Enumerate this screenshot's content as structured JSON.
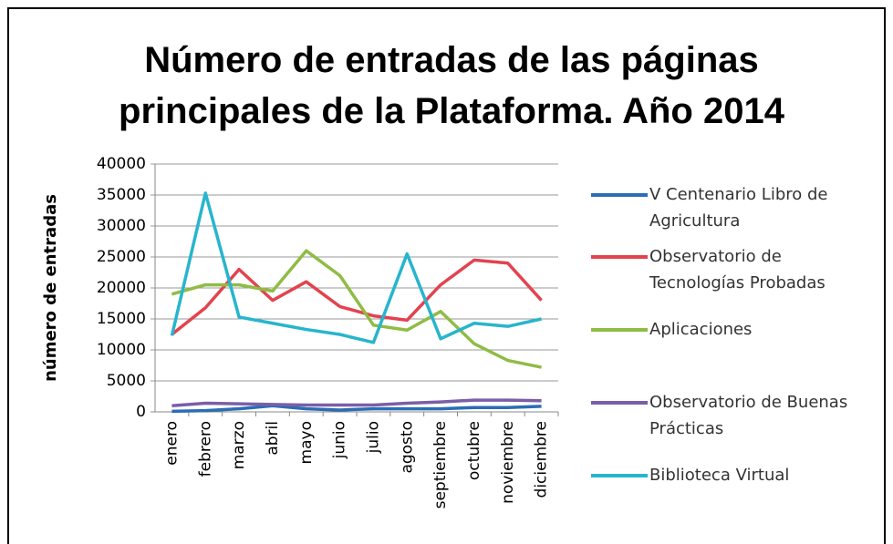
{
  "chart_data": {
    "type": "line",
    "title": "Número de entradas de las páginas principales de la Plataforma. Año 2014",
    "y_label": "número de entradas",
    "categories": [
      "enero",
      "febrero",
      "marzo",
      "abril",
      "mayo",
      "junio",
      "julio",
      "agosto",
      "septiembre",
      "octubre",
      "noviembre",
      "diciembre"
    ],
    "series": [
      {
        "name": "V Centenario Libro de Agricultura",
        "color": "#2a6db5",
        "values": [
          100,
          200,
          500,
          1000,
          500,
          300,
          500,
          500,
          500,
          700,
          700,
          900
        ]
      },
      {
        "name": "Observatorio de Tecnologías Probadas",
        "color": "#e2434f",
        "values": [
          12500,
          16800,
          23000,
          18000,
          21000,
          17000,
          15500,
          14800,
          20500,
          24500,
          24000,
          18000
        ]
      },
      {
        "name": "Aplicaciones",
        "color": "#8fbc45",
        "values": [
          19000,
          20500,
          20500,
          19500,
          26000,
          22000,
          14000,
          13200,
          16200,
          11000,
          8300,
          7200
        ]
      },
      {
        "name": "Observatorio de Buenas Prácticas",
        "color": "#7a5ea8",
        "values": [
          1000,
          1400,
          1300,
          1200,
          1100,
          1100,
          1100,
          1400,
          1600,
          1900,
          1900,
          1800
        ]
      },
      {
        "name": "Biblioteca Virtual",
        "color": "#27b5cd",
        "values": [
          12300,
          35300,
          15300,
          14300,
          13300,
          12500,
          11200,
          25500,
          11800,
          14300,
          13800,
          15000
        ]
      }
    ],
    "ylim": [
      0,
      40000
    ],
    "yticks": [
      0,
      5000,
      10000,
      15000,
      20000,
      25000,
      30000,
      35000,
      40000
    ],
    "grid": true,
    "legend": "right"
  }
}
